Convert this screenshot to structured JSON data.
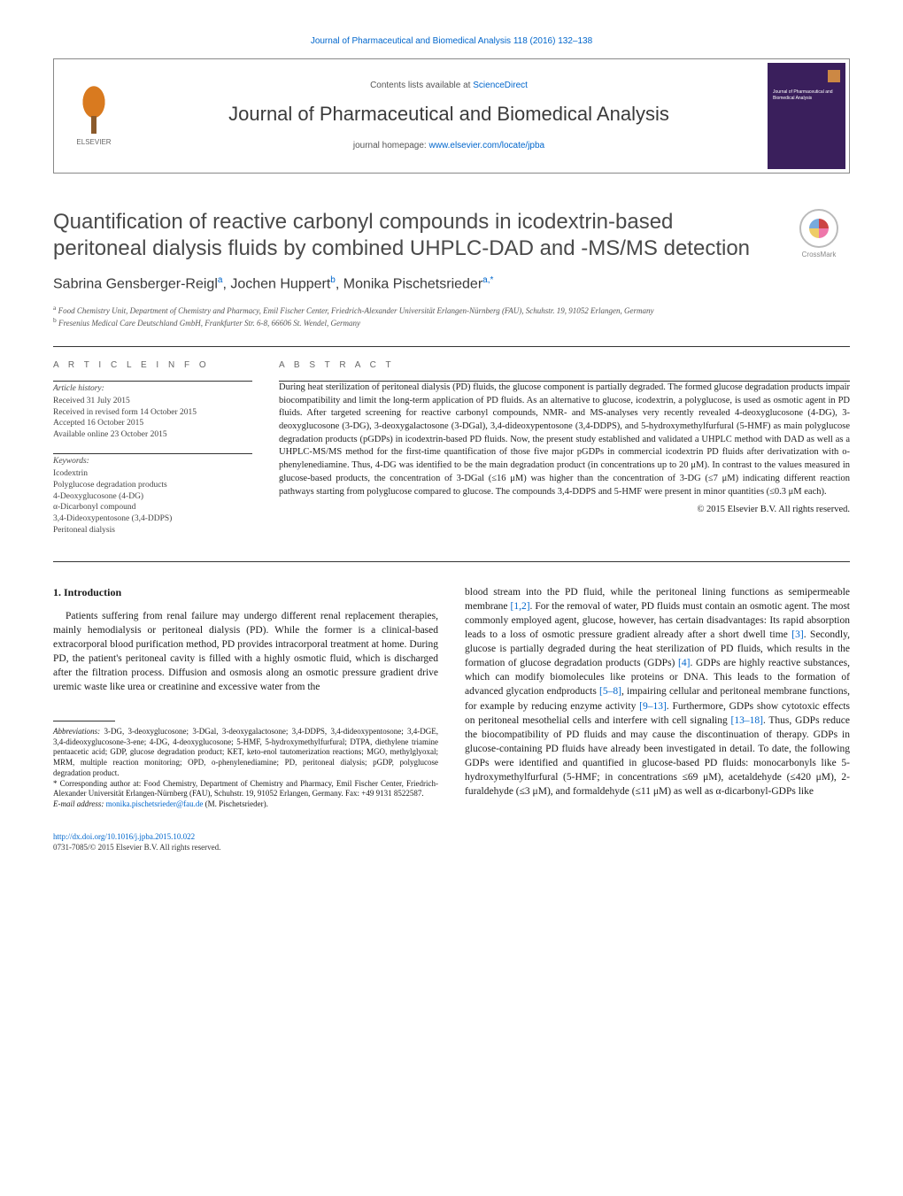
{
  "top_link": "Journal of Pharmaceutical and Biomedical Analysis 118 (2016) 132–138",
  "header": {
    "contents_prefix": "Contents lists available at ",
    "contents_link": "ScienceDirect",
    "journal_name": "Journal of Pharmaceutical and Biomedical Analysis",
    "homepage_prefix": "journal homepage: ",
    "homepage_url": "www.elsevier.com/locate/jpba",
    "elsevier_label": "ELSEVIER",
    "cover_text": "Journal of Pharmaceutical and Biomedical Analysis"
  },
  "crossmark_label": "CrossMark",
  "title": "Quantification of reactive carbonyl compounds in icodextrin-based peritoneal dialysis fluids by combined UHPLC-DAD and -MS/MS detection",
  "authors_html": "Sabrina Gensberger-Reigl<sup>a</sup>, Jochen Huppert<sup>b</sup>, Monika Pischetsrieder<sup>a,*</sup>",
  "affiliations": {
    "a": "Food Chemistry Unit, Department of Chemistry and Pharmacy, Emil Fischer Center, Friedrich-Alexander Universität Erlangen-Nürnberg (FAU), Schuhstr. 19, 91052 Erlangen, Germany",
    "b": "Fresenius Medical Care Deutschland GmbH, Frankfurter Str. 6-8, 66606 St. Wendel, Germany"
  },
  "article_info": {
    "heading": "a r t i c l e   i n f o",
    "history_head": "Article history:",
    "history": [
      "Received 31 July 2015",
      "Received in revised form 14 October 2015",
      "Accepted 16 October 2015",
      "Available online 23 October 2015"
    ],
    "keywords_head": "Keywords:",
    "keywords": [
      "Icodextrin",
      "Polyglucose degradation products",
      "4-Deoxyglucosone (4-DG)",
      "α-Dicarbonyl compound",
      "3,4-Dideoxypentosone (3,4-DDPS)",
      "Peritoneal dialysis"
    ]
  },
  "abstract": {
    "heading": "a b s t r a c t",
    "text": "During heat sterilization of peritoneal dialysis (PD) fluids, the glucose component is partially degraded. The formed glucose degradation products impair biocompatibility and limit the long-term application of PD fluids. As an alternative to glucose, icodextrin, a polyglucose, is used as osmotic agent in PD fluids. After targeted screening for reactive carbonyl compounds, NMR- and MS-analyses very recently revealed 4-deoxyglucosone (4-DG), 3-deoxyglucosone (3-DG), 3-deoxygalactosone (3-DGal), 3,4-dideoxypentosone (3,4-DDPS), and 5-hydroxymethylfurfural (5-HMF) as main polyglucose degradation products (pGDPs) in icodextrin-based PD fluids. Now, the present study established and validated a UHPLC method with DAD as well as a UHPLC-MS/MS method for the first-time quantification of those five major pGDPs in commercial icodextrin PD fluids after derivatization with o-phenylenediamine. Thus, 4-DG was identified to be the main degradation product (in concentrations up to 20 μM). In contrast to the values measured in glucose-based products, the concentration of 3-DGal (≤16 μM) was higher than the concentration of 3-DG (≤7 μM) indicating different reaction pathways starting from polyglucose compared to glucose. The compounds 3,4-DDPS and 5-HMF were present in minor quantities (≤0.3 μM each).",
    "copyright": "© 2015 Elsevier B.V. All rights reserved."
  },
  "body": {
    "intro_heading": "1. Introduction",
    "col1": "Patients suffering from renal failure may undergo different renal replacement therapies, mainly hemodialysis or peritoneal dialysis (PD). While the former is a clinical-based extracorporal blood purification method, PD provides intracorporal treatment at home. During PD, the patient's peritoneal cavity is filled with a highly osmotic fluid, which is discharged after the filtration process. Diffusion and osmosis along an osmotic pressure gradient drive uremic waste like urea or creatinine and excessive water from the",
    "col2": "blood stream into the PD fluid, while the peritoneal lining functions as semipermeable membrane [1,2]. For the removal of water, PD fluids must contain an osmotic agent. The most commonly employed agent, glucose, however, has certain disadvantages: Its rapid absorption leads to a loss of osmotic pressure gradient already after a short dwell time [3]. Secondly, glucose is partially degraded during the heat sterilization of PD fluids, which results in the formation of glucose degradation products (GDPs) [4]. GDPs are highly reactive substances, which can modify biomolecules like proteins or DNA. This leads to the formation of advanced glycation endproducts [5–8], impairing cellular and peritoneal membrane functions, for example by reducing enzyme activity [9–13]. Furthermore, GDPs show cytotoxic effects on peritoneal mesothelial cells and interfere with cell signaling [13–18]. Thus, GDPs reduce the biocompatibility of PD fluids and may cause the discontinuation of therapy. GDPs in glucose-containing PD fluids have already been investigated in detail. To date, the following GDPs were identified and quantified in glucose-based PD fluids: monocarbonyls like 5-hydroxymethylfurfural (5-HMF; in concentrations ≤69 μM), acetaldehyde (≤420 μM), 2-furaldehyde (≤3 μM), and formaldehyde (≤11 μM) as well as α-dicarbonyl-GDPs like"
  },
  "footnotes": {
    "abbrev_label": "Abbreviations:",
    "abbrev_text": "3-DG, 3-deoxyglucosone; 3-DGal, 3-deoxygalactosone; 3,4-DDPS, 3,4-dideoxypentosone; 3,4-DGE, 3,4-dideoxyglucosone-3-ene; 4-DG, 4-deoxyglucosone; 5-HMF, 5-hydroxymethylfurfural; DTPA, diethylene triamine pentaacetic acid; GDP, glucose degradation product; KET, keto-enol tautomerization reactions; MGO, methylglyoxal; MRM, multiple reaction monitoring; OPD, o-phenylenediamine; PD, peritoneal dialysis; pGDP, polyglucose degradation product.",
    "corresponding": "* Corresponding author at: Food Chemistry, Department of Chemistry and Pharmacy, Emil Fischer Center, Friedrich-Alexander Universität Erlangen-Nürnberg (FAU), Schuhstr. 19, 91052 Erlangen, Germany. Fax: +49 9131 8522587.",
    "email_label": "E-mail address:",
    "email": "monika.pischetsrieder@fau.de",
    "email_who": " (M. Pischetsrieder)."
  },
  "bottom": {
    "doi": "http://dx.doi.org/10.1016/j.jpba.2015.10.022",
    "issn_line": "0731-7085/© 2015 Elsevier B.V. All rights reserved."
  },
  "refs": {
    "r12": "[1,2]",
    "r3": "[3]",
    "r4": "[4]",
    "r58": "[5–8]",
    "r913": "[9–13]",
    "r1318": "[13–18]"
  },
  "colors": {
    "link": "#0066cc",
    "text": "#1a1a1a",
    "heading_gray": "#4a4a4a",
    "rule": "#333333",
    "cover_bg": "#3a1f5c",
    "elsevier_orange": "#d97a1f"
  }
}
